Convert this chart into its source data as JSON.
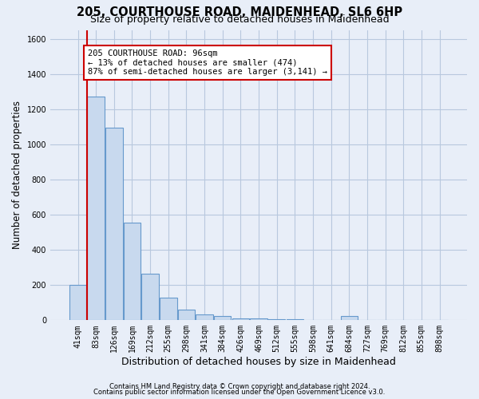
{
  "title": "205, COURTHOUSE ROAD, MAIDENHEAD, SL6 6HP",
  "subtitle": "Size of property relative to detached houses in Maidenhead",
  "xlabel": "Distribution of detached houses by size in Maidenhead",
  "ylabel": "Number of detached properties",
  "footnote1": "Contains HM Land Registry data © Crown copyright and database right 2024.",
  "footnote2": "Contains public sector information licensed under the Open Government Licence v3.0.",
  "bar_labels": [
    "41sqm",
    "83sqm",
    "126sqm",
    "169sqm",
    "212sqm",
    "255sqm",
    "298sqm",
    "341sqm",
    "384sqm",
    "426sqm",
    "469sqm",
    "512sqm",
    "555sqm",
    "598sqm",
    "641sqm",
    "684sqm",
    "727sqm",
    "769sqm",
    "812sqm",
    "855sqm",
    "898sqm"
  ],
  "bar_values": [
    200,
    1270,
    1095,
    555,
    265,
    130,
    62,
    32,
    22,
    12,
    12,
    8,
    8,
    0,
    0,
    22,
    0,
    0,
    0,
    0,
    0
  ],
  "bar_color": "#c8d9ee",
  "bar_edge_color": "#6699cc",
  "grid_color": "#b8c8de",
  "background_color": "#e8eef8",
  "red_line_x": 0.525,
  "red_line_color": "#cc0000",
  "annotation_text": "205 COURTHOUSE ROAD: 96sqm\n← 13% of detached houses are smaller (474)\n87% of semi-detached houses are larger (3,141) →",
  "annotation_box_color": "#ffffff",
  "annotation_border_color": "#cc0000",
  "ylim": [
    0,
    1650
  ],
  "yticks": [
    0,
    200,
    400,
    600,
    800,
    1000,
    1200,
    1400,
    1600
  ],
  "title_fontsize": 10.5,
  "subtitle_fontsize": 9,
  "ylabel_fontsize": 8.5,
  "xlabel_fontsize": 9,
  "tick_fontsize": 7,
  "footnote_fontsize": 6,
  "annot_fontsize": 7.5
}
